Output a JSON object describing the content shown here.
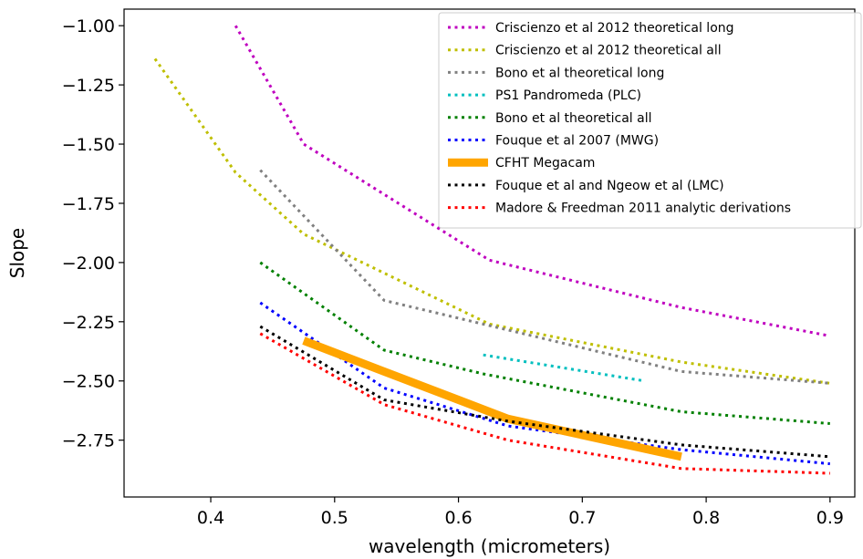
{
  "chart_data": {
    "type": "line",
    "title": "",
    "xlabel": "wavelength (micrometers)",
    "ylabel": "Slope",
    "xlim": [
      0.33,
      0.92
    ],
    "ylim": [
      -2.99,
      -0.93
    ],
    "xticks": [
      0.4,
      0.5,
      0.6,
      0.7,
      0.8,
      0.9
    ],
    "xtick_labels": [
      "0.4",
      "0.5",
      "0.6",
      "0.7",
      "0.8",
      "0.9"
    ],
    "yticks": [
      -1.0,
      -1.25,
      -1.5,
      -1.75,
      -2.0,
      -2.25,
      -2.5,
      -2.75
    ],
    "ytick_labels": [
      "−1.00",
      "−1.25",
      "−1.50",
      "−1.75",
      "−2.00",
      "−2.25",
      "−2.50",
      "−2.75"
    ],
    "grid": false,
    "legend_position": "top-right",
    "series": [
      {
        "name": "Criscienzo et al 2012 theoretical long",
        "color": "#bf00bf",
        "style": "dotted",
        "x": [
          0.42,
          0.475,
          0.625,
          0.78,
          0.9
        ],
        "y": [
          -1.0,
          -1.5,
          -1.99,
          -2.19,
          -2.31
        ]
      },
      {
        "name": "Criscienzo et al 2012 theoretical all",
        "color": "#bfbf00",
        "style": "dotted",
        "x": [
          0.355,
          0.42,
          0.475,
          0.625,
          0.78,
          0.9
        ],
        "y": [
          -1.14,
          -1.62,
          -1.88,
          -2.26,
          -2.42,
          -2.51
        ]
      },
      {
        "name": "Bono et al theoretical long",
        "color": "#808080",
        "style": "dotted",
        "x": [
          0.44,
          0.54,
          0.62,
          0.78,
          0.9
        ],
        "y": [
          -1.61,
          -2.16,
          -2.26,
          -2.46,
          -2.51
        ]
      },
      {
        "name": "PS1 Pandromeda (PLC)",
        "color": "#00bfbf",
        "style": "dotted",
        "x": [
          0.62,
          0.75
        ],
        "y": [
          -2.39,
          -2.5
        ]
      },
      {
        "name": "Bono et al theoretical all",
        "color": "#008000",
        "style": "dotted",
        "x": [
          0.44,
          0.54,
          0.62,
          0.78,
          0.9
        ],
        "y": [
          -2.0,
          -2.37,
          -2.47,
          -2.63,
          -2.68
        ]
      },
      {
        "name": "Fouque et al 2007 (MWG)",
        "color": "#0000ff",
        "style": "dotted",
        "x": [
          0.44,
          0.54,
          0.64,
          0.78,
          0.9
        ],
        "y": [
          -2.17,
          -2.53,
          -2.69,
          -2.79,
          -2.85
        ]
      },
      {
        "name": "CFHT Megacam",
        "color": "#ffa500",
        "style": "solid",
        "x": [
          0.475,
          0.54,
          0.64,
          0.78
        ],
        "y": [
          -2.33,
          -2.46,
          -2.66,
          -2.82
        ]
      },
      {
        "name": "Fouque et al and Ngeow et al (LMC)",
        "color": "#000000",
        "style": "dotted",
        "x": [
          0.44,
          0.54,
          0.64,
          0.78,
          0.9
        ],
        "y": [
          -2.27,
          -2.58,
          -2.67,
          -2.77,
          -2.82
        ]
      },
      {
        "name": "Madore & Freedman 2011 analytic derivations",
        "color": "#ff0000",
        "style": "dotted",
        "x": [
          0.44,
          0.54,
          0.64,
          0.78,
          0.9
        ],
        "y": [
          -2.3,
          -2.6,
          -2.75,
          -2.87,
          -2.89
        ]
      }
    ]
  }
}
